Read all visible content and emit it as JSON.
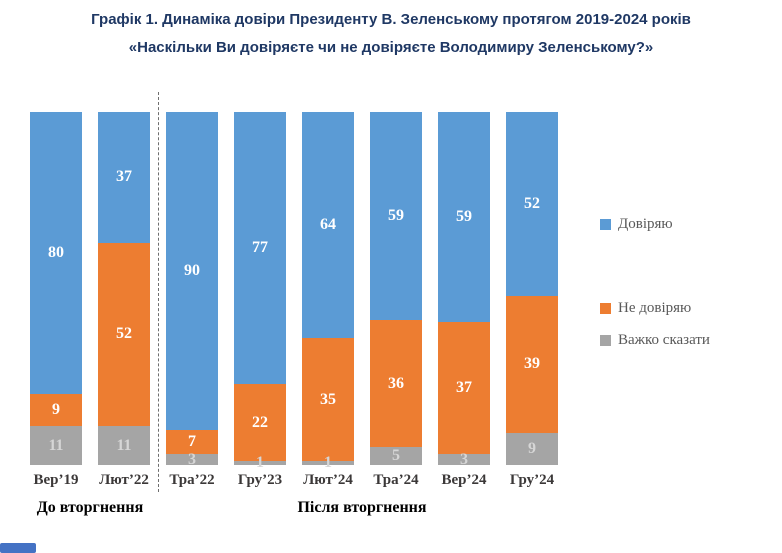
{
  "title": {
    "line1": "Графік 1. Динаміка довіри Президенту В. Зеленському протягом 2019-2024 років",
    "line2": "«Наскільки Ви довіряєте чи не довіряєте Володимиру Зеленському?»"
  },
  "chart_data": {
    "type": "bar",
    "stacked": true,
    "grid": false,
    "ylim": [
      0,
      100
    ],
    "legend_position": "right",
    "categories": [
      "Вер’19",
      "Лют’22",
      "Тра’22",
      "Гру’23",
      "Лют’24",
      "Тра’24",
      "Вер’24",
      "Гру’24"
    ],
    "series": [
      {
        "name": "Довіряю",
        "color": "#5B9BD5",
        "label_color": "#FFFFFF",
        "values": [
          80,
          37,
          90,
          77,
          64,
          59,
          59,
          52
        ]
      },
      {
        "name": "Не довіряю",
        "color": "#ED7D31",
        "label_color": "#FFFFFF",
        "values": [
          9,
          52,
          7,
          22,
          35,
          36,
          37,
          39
        ]
      },
      {
        "name": "Важко сказати",
        "color": "#A5A5A5",
        "label_color": "#D6D6D6",
        "values": [
          11,
          11,
          3,
          1,
          1,
          5,
          3,
          9
        ]
      }
    ],
    "groups": [
      {
        "label": "До вторгнення",
        "span": [
          0,
          1
        ]
      },
      {
        "label": "Після вторгнення",
        "span": [
          2,
          7
        ]
      }
    ]
  },
  "colors": {
    "title": "#1F3864",
    "trust": "#5B9BD5",
    "no_trust": "#ED7D31",
    "hard_to_say": "#A5A5A5",
    "corner_artifact": "#4472C4"
  }
}
